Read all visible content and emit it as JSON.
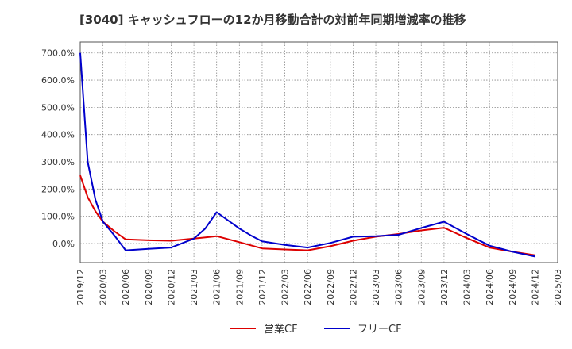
{
  "chart_data": {
    "type": "line",
    "title": "[3040]  キャッシュフローの12か月移動合計の対前年同期増減率の推移",
    "xlabel": "",
    "ylabel": "",
    "ylim": [
      -70,
      740
    ],
    "yticks": [
      700,
      600,
      500,
      400,
      300,
      200,
      100,
      0
    ],
    "ytick_labels": [
      "700.0%",
      "600.0%",
      "500.0%",
      "400.0%",
      "300.0%",
      "200.0%",
      "100.0%",
      "0.0%"
    ],
    "x_tick_labels": [
      "2019/12",
      "2020/03",
      "2020/06",
      "2020/09",
      "2020/12",
      "2021/03",
      "2021/06",
      "2021/09",
      "2021/12",
      "2022/03",
      "2022/06",
      "2022/09",
      "2022/12",
      "2023/03",
      "2023/06",
      "2023/09",
      "2023/12",
      "2024/03",
      "2024/06",
      "2024/09",
      "2024/12",
      "2025/03"
    ],
    "grid": true,
    "legend_position": "bottom-center",
    "series": [
      {
        "name": "営業CF",
        "color": "#dd0000",
        "points": [
          [
            0,
            250
          ],
          [
            0.33,
            170
          ],
          [
            0.67,
            118
          ],
          [
            1,
            80
          ],
          [
            1.5,
            45
          ],
          [
            2,
            15
          ],
          [
            3,
            12
          ],
          [
            4,
            10
          ],
          [
            5,
            18
          ],
          [
            6,
            27
          ],
          [
            7,
            5
          ],
          [
            8,
            -18
          ],
          [
            9,
            -22
          ],
          [
            10,
            -25
          ],
          [
            11,
            -10
          ],
          [
            12,
            10
          ],
          [
            13,
            25
          ],
          [
            14,
            35
          ],
          [
            15,
            48
          ],
          [
            16,
            58
          ],
          [
            17,
            20
          ],
          [
            18,
            -15
          ],
          [
            19,
            -30
          ],
          [
            20,
            -43
          ]
        ]
      },
      {
        "name": "フリーCF",
        "color": "#0000cc",
        "points": [
          [
            0,
            700
          ],
          [
            0.33,
            300
          ],
          [
            0.67,
            160
          ],
          [
            1,
            80
          ],
          [
            1.5,
            30
          ],
          [
            2,
            -25
          ],
          [
            3,
            -20
          ],
          [
            4,
            -15
          ],
          [
            5,
            18
          ],
          [
            5.5,
            55
          ],
          [
            6,
            115
          ],
          [
            7,
            55
          ],
          [
            7.5,
            30
          ],
          [
            8,
            8
          ],
          [
            9,
            -5
          ],
          [
            10,
            -15
          ],
          [
            11,
            2
          ],
          [
            12,
            25
          ],
          [
            13,
            27
          ],
          [
            14,
            32
          ],
          [
            15,
            57
          ],
          [
            16,
            80
          ],
          [
            17,
            35
          ],
          [
            18,
            -8
          ],
          [
            19,
            -30
          ],
          [
            20,
            -48
          ]
        ]
      }
    ]
  }
}
